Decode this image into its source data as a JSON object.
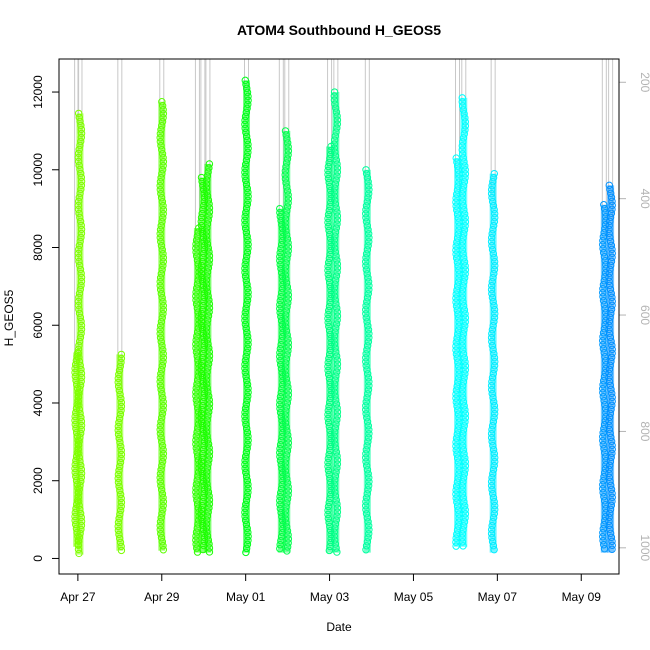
{
  "chart_data": {
    "type": "scatter",
    "title": "ATOM4 Southbound H_GEOS5",
    "xlabel": "Date",
    "ylabel": "H_GEOS5",
    "x_ticks": [
      "Apr 27",
      "Apr 29",
      "May 01",
      "May 03",
      "May 05",
      "May 07",
      "May 09"
    ],
    "x_tick_days": [
      27,
      29,
      31,
      33,
      35,
      37,
      39
    ],
    "xlim_days": [
      26.55,
      39.9
    ],
    "y_ticks": [
      0,
      2000,
      4000,
      6000,
      8000,
      10000,
      12000
    ],
    "ylim": [
      -400,
      12850
    ],
    "y2_ticks": [
      200,
      400,
      600,
      800,
      1000
    ],
    "y2lim": [
      1045,
      160
    ],
    "y2_axis_color": "#b3b3b3",
    "grey_pressure_trace_color": "#c8c8c8",
    "grid": false,
    "legend": "none",
    "series": [
      {
        "day": 26.97,
        "ymin": 300,
        "ymax": 5300,
        "color": "#7fff00"
      },
      {
        "day": 27.05,
        "ymin": 100,
        "ymax": 11450,
        "color": "#7fff00"
      },
      {
        "day": 28.0,
        "ymin": 200,
        "ymax": 5250,
        "color": "#7cff00"
      },
      {
        "day": 29.0,
        "ymin": 200,
        "ymax": 11750,
        "color": "#5cff00"
      },
      {
        "day": 29.85,
        "ymin": 150,
        "ymax": 8500,
        "color": "#2dff00"
      },
      {
        "day": 29.98,
        "ymin": 150,
        "ymax": 9800,
        "color": "#1fff00"
      },
      {
        "day": 30.1,
        "ymin": 150,
        "ymax": 10150,
        "color": "#1aff00"
      },
      {
        "day": 31.02,
        "ymin": 150,
        "ymax": 12300,
        "color": "#00ff1a"
      },
      {
        "day": 31.85,
        "ymin": 150,
        "ymax": 9000,
        "color": "#00ff40"
      },
      {
        "day": 31.98,
        "ymin": 150,
        "ymax": 11000,
        "color": "#00ff4d"
      },
      {
        "day": 33.0,
        "ymin": 150,
        "ymax": 10600,
        "color": "#00ff80"
      },
      {
        "day": 33.15,
        "ymin": 150,
        "ymax": 12000,
        "color": "#00ff88"
      },
      {
        "day": 33.9,
        "ymin": 150,
        "ymax": 10000,
        "color": "#00ffa0"
      },
      {
        "day": 36.05,
        "ymin": 300,
        "ymax": 10300,
        "color": "#00ffff"
      },
      {
        "day": 36.2,
        "ymin": 300,
        "ymax": 11850,
        "color": "#00ffff"
      },
      {
        "day": 36.9,
        "ymin": 150,
        "ymax": 9900,
        "color": "#00ecff"
      },
      {
        "day": 39.55,
        "ymin": 150,
        "ymax": 9100,
        "color": "#0099ff"
      },
      {
        "day": 39.7,
        "ymin": 150,
        "ymax": 9600,
        "color": "#0090ff"
      }
    ]
  }
}
